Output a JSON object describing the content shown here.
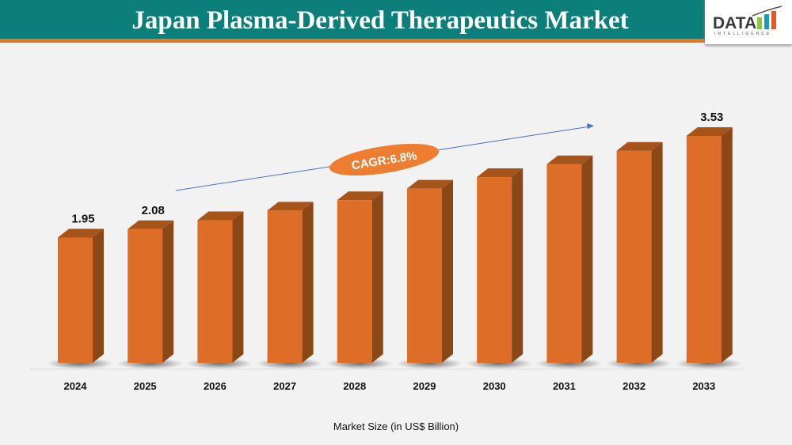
{
  "header": {
    "title": "Japan Plasma-Derived Therapeutics Market",
    "logo_text": "DATA",
    "logo_subtext": "INTELLIGENCE"
  },
  "colors": {
    "header_bg": "#0c7f7b",
    "accent": "#e87722",
    "bar_front": "#de6e27",
    "bar_side": "#8c4717",
    "bar_top": "#a65419",
    "arrow": "#4472c4"
  },
  "chart_data": {
    "type": "bar",
    "categories": [
      "2024",
      "2025",
      "2026",
      "2027",
      "2028",
      "2029",
      "2030",
      "2031",
      "2032",
      "2033"
    ],
    "values": [
      1.95,
      2.08,
      2.22,
      2.37,
      2.53,
      2.71,
      2.89,
      3.09,
      3.3,
      3.53
    ],
    "data_labels": {
      "0": "1.95",
      "1": "2.08",
      "9": "3.53"
    },
    "xlabel": "Market Size (in US$ Billion)",
    "ylim": [
      0,
      3.6
    ],
    "grid": false,
    "annotation": "CAGR:6.8%"
  }
}
